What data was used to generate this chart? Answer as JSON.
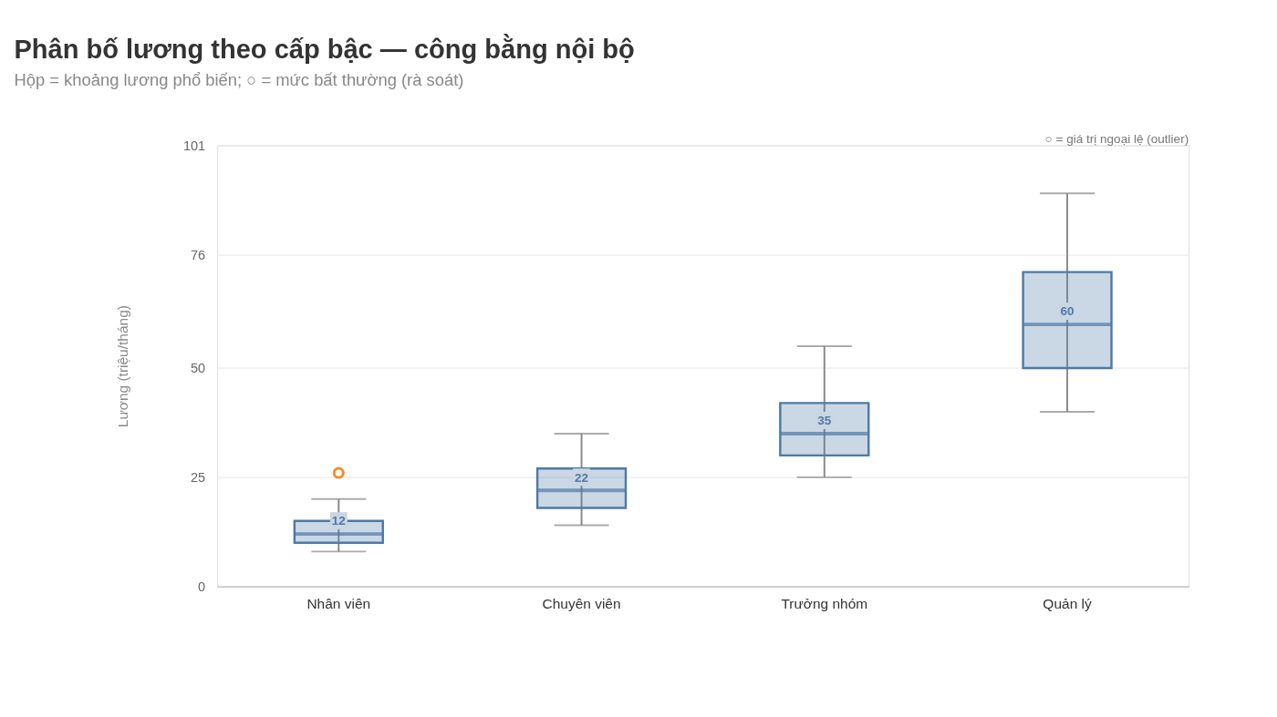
{
  "chart_data": {
    "type": "box",
    "title": "Phân bố lương theo cấp bậc — công bằng nội bộ",
    "subtitle": "Hộp = khoảng lương phổ biến; ○ = mức bất thường (rà soát)",
    "ylabel": "Lương (triệu/tháng)",
    "categories": [
      "Nhân viên",
      "Chuyên viên",
      "Trưởng nhóm",
      "Quản lý"
    ],
    "series": [
      {
        "color": "#4e79a7",
        "value_labels": [
          "12",
          "22",
          "35",
          "60"
        ],
        "boxes": [
          {
            "low": 8,
            "q1": 10,
            "median": 12,
            "q3": 15,
            "high": 20,
            "outliers": [
              26
            ]
          },
          {
            "low": 14,
            "q1": 18,
            "median": 22,
            "q3": 27,
            "high": 35
          },
          {
            "low": 25,
            "q1": 30,
            "median": 35,
            "q3": 42,
            "high": 55
          },
          {
            "low": 40,
            "q1": 50,
            "median": 60,
            "q3": 72,
            "high": 90
          }
        ]
      }
    ],
    "ylim": [
      0,
      101
    ],
    "yticks": [
      0,
      25,
      50,
      76,
      101
    ],
    "grid": "y",
    "annotations": [
      "○ = giá trị ngoại lệ (outlier)"
    ]
  }
}
